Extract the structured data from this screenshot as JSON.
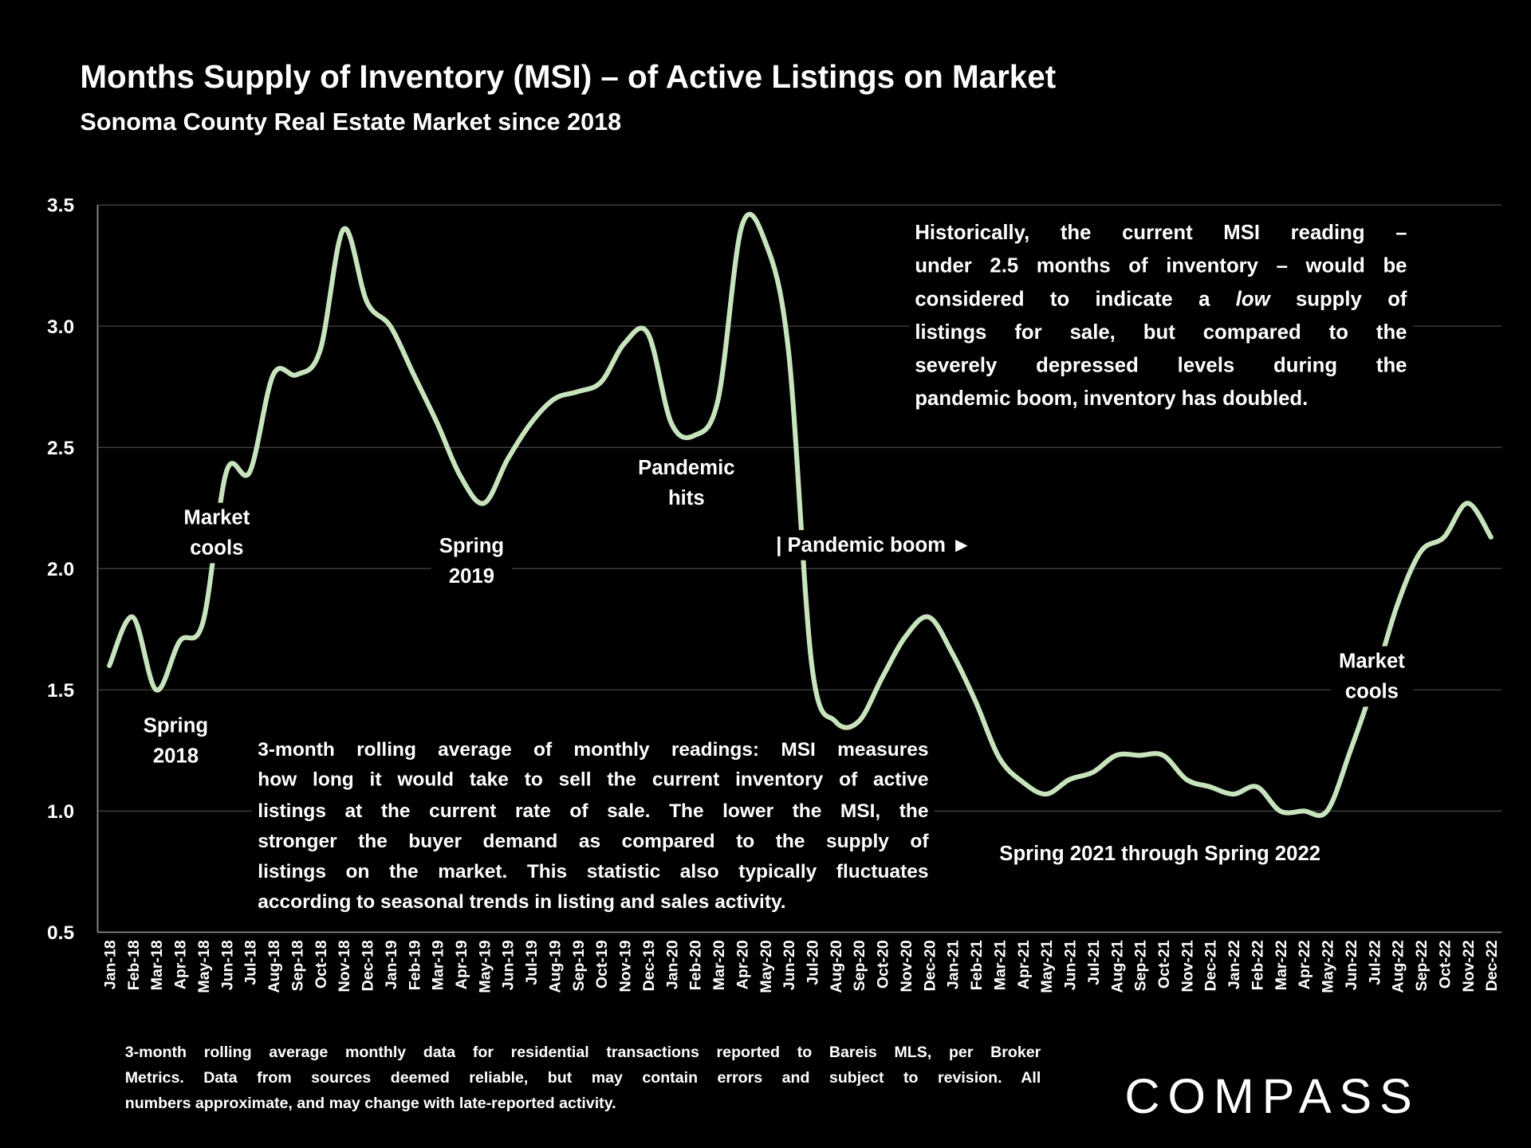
{
  "chart_data": {
    "type": "line",
    "title": "Months Supply of Inventory (MSI) – of Active Listings on Market",
    "subtitle": "Sonoma County Real Estate Market since 2018",
    "categories": [
      "Jan-18",
      "Feb-18",
      "Mar-18",
      "Apr-18",
      "May-18",
      "Jun-18",
      "Jul-18",
      "Aug-18",
      "Sep-18",
      "Oct-18",
      "Nov-18",
      "Dec-18",
      "Jan-19",
      "Feb-19",
      "Mar-19",
      "Apr-19",
      "May-19",
      "Jun-19",
      "Jul-19",
      "Aug-19",
      "Sep-19",
      "Oct-19",
      "Nov-19",
      "Dec-19",
      "Jan-20",
      "Feb-20",
      "Mar-20",
      "Apr-20",
      "May-20",
      "Jun-20",
      "Jul-20",
      "Aug-20",
      "Sep-20",
      "Oct-20",
      "Nov-20",
      "Dec-20",
      "Jan-21",
      "Feb-21",
      "Mar-21",
      "Apr-21",
      "May-21",
      "Jun-21",
      "Jul-21",
      "Aug-21",
      "Sep-21",
      "Oct-21",
      "Nov-21",
      "Dec-21",
      "Jan-22",
      "Feb-22",
      "Mar-22",
      "Apr-22",
      "May-22",
      "Jun-22",
      "Jul-22",
      "Aug-22",
      "Sep-22",
      "Oct-22",
      "Nov-22",
      "Dec-22"
    ],
    "values": [
      1.6,
      1.8,
      1.5,
      1.7,
      1.78,
      2.4,
      2.4,
      2.8,
      2.8,
      2.9,
      3.4,
      3.1,
      3.0,
      2.8,
      2.6,
      2.38,
      2.27,
      2.45,
      2.6,
      2.7,
      2.73,
      2.77,
      2.93,
      2.97,
      2.6,
      2.55,
      2.7,
      3.41,
      3.35,
      2.9,
      1.6,
      1.37,
      1.37,
      1.55,
      1.72,
      1.8,
      1.65,
      1.45,
      1.22,
      1.12,
      1.07,
      1.13,
      1.16,
      1.23,
      1.23,
      1.23,
      1.13,
      1.1,
      1.07,
      1.1,
      1.0,
      1.0,
      1.0,
      1.25,
      1.53,
      1.85,
      2.07,
      2.13,
      2.27,
      2.13
    ],
    "color": "#c8e4bd",
    "ylim": [
      0.5,
      3.5
    ],
    "yticks": [
      0.5,
      {
        "value": 1,
        "label": "1.0"
      },
      1.5,
      {
        "value": 2,
        "label": "2.0"
      },
      2.5,
      {
        "value": 3,
        "label": "3.0"
      },
      3.5
    ],
    "grid": true,
    "annotations": [
      {
        "lines": [
          "Spring",
          "2018"
        ]
      },
      {
        "lines": [
          "Market",
          "cools"
        ]
      },
      {
        "lines": [
          "Spring",
          "2019"
        ]
      },
      {
        "lines": [
          "Pandemic",
          "hits"
        ]
      },
      {
        "lines": [
          "| Pandemic boom ►"
        ]
      },
      {
        "lines": [
          "Market",
          "cools"
        ]
      },
      {
        "lines": [
          "Spring 2021 through Spring 2022"
        ]
      }
    ],
    "notes": [
      {
        "lines": [
          "Historically, the current MSI reading –",
          "under 2.5 months of inventory – would be",
          "considered to indicate a low supply of",
          "listings for sale, but compared to the",
          "severely depressed levels during the",
          "pandemic boom, inventory has doubled."
        ],
        "emphasis": "low"
      },
      {
        "lines": [
          "3-month rolling average of monthly readings: MSI measures",
          "how long it would take to sell the current inventory of active",
          "listings at the current rate of sale. The lower the MSI, the",
          "stronger the buyer demand as compared to the supply of",
          "listings on the market. This statistic also typically fluctuates",
          "according to seasonal trends in listing and sales activity."
        ]
      }
    ],
    "footnote": [
      "3-month rolling average monthly data for residential transactions reported to Bareis MLS, per Broker",
      "Metrics. Data from sources deemed reliable, but may contain errors and subject to revision. All",
      "numbers approximate, and may change with late-reported activity."
    ],
    "logo": "COMPASS"
  }
}
